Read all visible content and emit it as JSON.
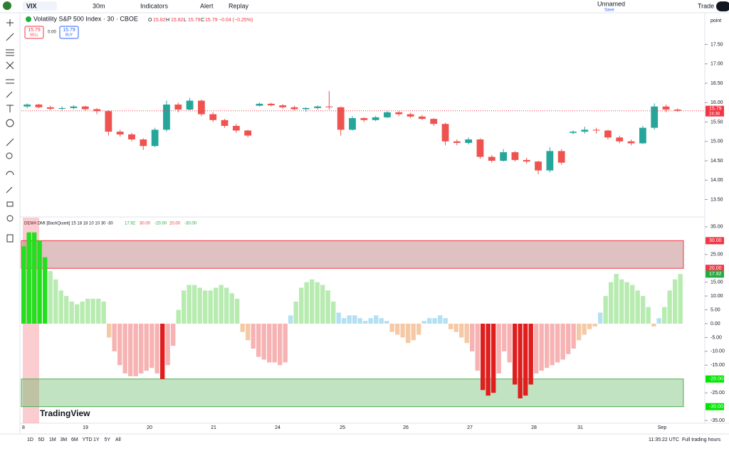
{
  "toolbar": {
    "symbol": "VIX",
    "interval": "30m",
    "indicators": "Indicators",
    "alert": "Alert",
    "replay": "Replay",
    "layout_name": "Unnamed",
    "save": "Save",
    "trade": "Trade"
  },
  "legend": {
    "title": "Volatility S&P 500 Index · 30 · CBOE",
    "open_label": "O",
    "open": "15.82",
    "high_label": "H",
    "high": "15.82",
    "low_label": "L",
    "low": "15.79",
    "close_label": "C",
    "close": "15.79",
    "change": "−0.04 (−0.25%)",
    "sell_price": "15.79",
    "sell": "SELL",
    "spread": "0.00",
    "buy_price": "15.79",
    "buy": "BUY"
  },
  "price_pane": {
    "type": "candlestick",
    "unit": "point",
    "ylim": [
      13.05,
      18.28
    ],
    "yticks": [
      {
        "value": 13.5,
        "label": "13.50"
      },
      {
        "value": 14,
        "label": "14.00"
      },
      {
        "value": 14.5,
        "label": "14.50"
      },
      {
        "value": 15,
        "label": "15.00"
      },
      {
        "value": 15.5,
        "label": "15.50"
      },
      {
        "value": 16,
        "label": "16.00"
      },
      {
        "value": 16.5,
        "label": "16.50"
      },
      {
        "value": 17,
        "label": "17.00"
      },
      {
        "value": 17.5,
        "label": "17.50"
      }
    ],
    "up_color": "#26a69a",
    "down_color": "#ef5350",
    "last_price": {
      "value": 15.79,
      "label": "15.79",
      "countdown": "24:38"
    },
    "candles": [
      [
        15.9,
        15.98,
        15.85,
        15.95
      ],
      [
        15.95,
        15.97,
        15.85,
        15.88
      ],
      [
        15.88,
        15.92,
        15.8,
        15.84
      ],
      [
        15.84,
        15.9,
        15.8,
        15.86
      ],
      [
        15.86,
        15.93,
        15.83,
        15.9
      ],
      [
        15.9,
        15.92,
        15.8,
        15.83
      ],
      [
        15.83,
        15.86,
        15.7,
        15.78
      ],
      [
        15.78,
        15.8,
        15.15,
        15.25
      ],
      [
        15.25,
        15.3,
        15.12,
        15.18
      ],
      [
        15.18,
        15.22,
        15.0,
        15.05
      ],
      [
        15.05,
        15.08,
        14.78,
        14.88
      ],
      [
        14.88,
        15.35,
        14.85,
        15.3
      ],
      [
        15.3,
        16.05,
        15.25,
        15.95
      ],
      [
        15.95,
        16.0,
        15.75,
        15.82
      ],
      [
        15.82,
        16.12,
        15.8,
        16.05
      ],
      [
        16.05,
        16.08,
        15.65,
        15.7
      ],
      [
        15.7,
        15.75,
        15.5,
        15.55
      ],
      [
        15.55,
        15.58,
        15.35,
        15.4
      ],
      [
        15.4,
        15.45,
        15.22,
        15.28
      ],
      [
        15.28,
        15.3,
        15.1,
        15.15
      ],
      [
        15.92,
        16.0,
        15.9,
        15.97
      ],
      [
        15.97,
        16.0,
        15.9,
        15.93
      ],
      [
        15.93,
        15.96,
        15.84,
        15.88
      ],
      [
        15.88,
        15.92,
        15.8,
        15.83
      ],
      [
        15.83,
        15.88,
        15.76,
        15.86
      ],
      [
        15.86,
        15.93,
        15.82,
        15.9
      ],
      [
        15.9,
        16.3,
        15.82,
        15.88
      ],
      [
        15.88,
        15.9,
        15.15,
        15.3
      ],
      [
        15.3,
        15.65,
        15.28,
        15.6
      ],
      [
        15.6,
        15.62,
        15.5,
        15.55
      ],
      [
        15.55,
        15.66,
        15.52,
        15.62
      ],
      [
        15.62,
        15.78,
        15.6,
        15.75
      ],
      [
        15.75,
        15.78,
        15.65,
        15.7
      ],
      [
        15.7,
        15.74,
        15.6,
        15.64
      ],
      [
        15.64,
        15.68,
        15.55,
        15.58
      ],
      [
        15.58,
        15.6,
        15.4,
        15.45
      ],
      [
        15.45,
        15.48,
        14.9,
        15.0
      ],
      [
        15.0,
        15.05,
        14.9,
        14.96
      ],
      [
        14.96,
        15.1,
        14.92,
        15.05
      ],
      [
        15.05,
        15.08,
        14.55,
        14.6
      ],
      [
        14.6,
        14.65,
        14.45,
        14.5
      ],
      [
        14.5,
        14.8,
        14.48,
        14.72
      ],
      [
        14.72,
        14.75,
        14.48,
        14.52
      ],
      [
        14.52,
        14.58,
        14.42,
        14.48
      ],
      [
        14.48,
        14.5,
        14.15,
        14.25
      ],
      [
        14.25,
        14.85,
        14.2,
        14.75
      ],
      [
        14.75,
        14.8,
        14.4,
        14.45
      ],
      [
        15.22,
        15.28,
        15.18,
        15.25
      ],
      [
        15.25,
        15.38,
        15.2,
        15.3
      ],
      [
        15.3,
        15.35,
        15.2,
        15.28
      ],
      [
        15.28,
        15.3,
        15.05,
        15.1
      ],
      [
        15.1,
        15.15,
        14.95,
        15.0
      ],
      [
        15.0,
        15.05,
        14.9,
        14.95
      ],
      [
        14.95,
        15.4,
        14.93,
        15.35
      ],
      [
        15.35,
        15.98,
        15.3,
        15.9
      ],
      [
        15.9,
        15.95,
        15.75,
        15.82
      ],
      [
        15.82,
        15.85,
        15.76,
        15.79
      ]
    ]
  },
  "indicator_pane": {
    "type": "histogram",
    "legend": "DEMA DMI [BackQuant] 15 18 18 10 10 30 -30",
    "legend_values": [
      "17.92",
      "30.00",
      "-20.00",
      "20.00",
      "-30.00"
    ],
    "ylim": [
      -36,
      36
    ],
    "yticks": [
      {
        "value": 35,
        "label": "35.00"
      },
      {
        "value": 25,
        "label": "25.00"
      },
      {
        "value": 15,
        "label": "15.00"
      },
      {
        "value": 10,
        "label": "10.00"
      },
      {
        "value": 5,
        "label": "5.00"
      },
      {
        "value": 0,
        "label": "0.00"
      },
      {
        "value": -5,
        "label": "-5.00"
      },
      {
        "value": -10,
        "label": "-10.00"
      },
      {
        "value": -15,
        "label": "-15.00"
      },
      {
        "value": -25,
        "label": "-25.00"
      },
      {
        "value": -35,
        "label": "-35.00"
      }
    ],
    "markers": [
      {
        "value": 30,
        "label": "30.00",
        "color": "#f23645"
      },
      {
        "value": 20,
        "label": "20.00",
        "color": "#f23645"
      },
      {
        "value": 17.92,
        "label": "17.92",
        "color": "#22ab3f"
      },
      {
        "value": -20,
        "label": "-20.00",
        "color": "#00e600"
      },
      {
        "value": -30,
        "label": "-30.00",
        "color": "#00e600"
      }
    ],
    "upper_zone": [
      20,
      30
    ],
    "lower_zone": [
      -30,
      -20
    ],
    "values": [
      28,
      33,
      33,
      30,
      24,
      19,
      16,
      12,
      10,
      8,
      7,
      8,
      9,
      9,
      9,
      8,
      -5,
      -10,
      -15,
      -18,
      -19,
      -19,
      -18,
      -17,
      -16,
      -18,
      -20,
      -15,
      -8,
      5,
      12,
      14,
      14,
      13,
      12,
      12,
      13,
      14,
      13,
      11,
      9,
      -3,
      -6,
      -9,
      -12,
      -13,
      -14,
      -14,
      -15,
      -14,
      3,
      8,
      13,
      15,
      16,
      15,
      14,
      12,
      8,
      4,
      2,
      3,
      3,
      2,
      1,
      2,
      3,
      2,
      1,
      -3,
      -4,
      -5,
      -7,
      -6,
      -4,
      1,
      2,
      2,
      3,
      2,
      -2,
      -3,
      -5,
      -7,
      -10,
      -17,
      -24,
      -26,
      -25,
      -18,
      -10,
      -14,
      -22,
      -27,
      -26,
      -22,
      -18,
      -17,
      -16,
      -15,
      -14,
      -13,
      -11,
      -9,
      -6,
      -4,
      -2,
      -1,
      4,
      10,
      15,
      18,
      16,
      15,
      14,
      12,
      10,
      6,
      -1,
      2,
      6,
      12,
      16,
      17.92
    ]
  },
  "time_axis": [
    "8",
    "19",
    "20",
    "21",
    "24",
    "25",
    "26",
    "27",
    "28",
    "31",
    "Sep"
  ],
  "watermark": "TradingView",
  "bottom_bar": {
    "ranges": [
      "1D",
      "5D",
      "1M",
      "3M",
      "6M",
      "YTD",
      "1Y",
      "5Y",
      "All"
    ],
    "clock": "11:35:22 UTC",
    "session": "Full trading hours"
  }
}
